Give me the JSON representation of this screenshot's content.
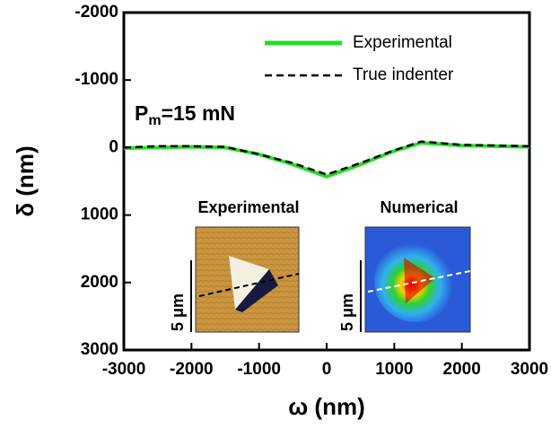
{
  "chart_data": {
    "type": "line",
    "x_label": "ω (nm)",
    "y_label": "δ (nm)",
    "annotation": {
      "main": "P",
      "sub": "m",
      "rest": "=15 mN"
    },
    "x": [
      -3000,
      -2500,
      -2000,
      -1500,
      -1000,
      -500,
      0,
      500,
      1000,
      1400,
      2000,
      2500,
      3000
    ],
    "series": [
      {
        "name": "Experimental",
        "color": "#22e022",
        "style": "solid",
        "values": [
          10,
          0,
          -10,
          0,
          100,
          250,
          430,
          250,
          50,
          -70,
          -30,
          -20,
          -10
        ]
      },
      {
        "name": "True indenter",
        "color": "#000000",
        "style": "dashed",
        "values": [
          0,
          -20,
          -20,
          -10,
          100,
          230,
          400,
          230,
          40,
          -90,
          -40,
          -30,
          -20
        ]
      }
    ],
    "xlim": [
      -3000,
      3000
    ],
    "xticks": [
      -3000,
      -2000,
      -1000,
      0,
      1000,
      2000,
      3000
    ],
    "ylim": [
      -2000,
      3000
    ],
    "yticks": [
      -2000,
      -1000,
      0,
      1000,
      2000,
      3000
    ],
    "y_inverted": true,
    "legend": "upper right",
    "insets": [
      {
        "title": "Experimental",
        "scale": "5 μm"
      },
      {
        "title": "Numerical",
        "scale": "5 μm"
      }
    ]
  }
}
